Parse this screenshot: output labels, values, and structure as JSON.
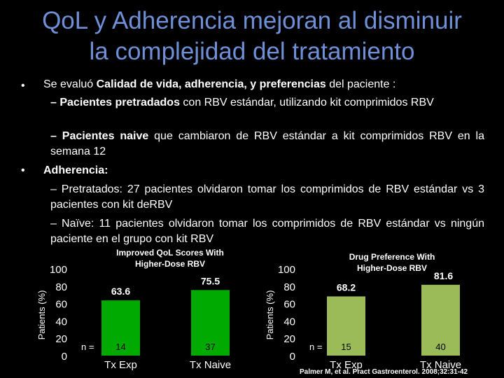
{
  "title_line1": "QoL y Adherencia mejoran al disminuir",
  "title_line2": "la complejidad del tratamiento",
  "bullets": {
    "b1_pre": "Se evaluó ",
    "b1_bold": "Calidad de vida, adherencia, y preferencias",
    "b1_post": " del paciente :",
    "s1_bold": "– Pacientes  pretradados",
    "s1_post": " con RBV estándar, utilizando kit comprimidos RBV",
    "s2_bold": "– Pacientes naive",
    "s2_post": " que cambiaron de RBV estándar a kit comprimidos RBV en la semana 12",
    "b2_bold": "Adherencia:",
    "s3": "– Pretratados: 27  pacientes olvidaron tomar los comprimidos de RBV estándar vs 3 pacientes con kit deRBV",
    "s4": "– Naïve: 11  pacientes olvidaron tomar los comprimidos de RBV estándar vs ningún paciente en el grupo con kit RBV"
  },
  "chart_data": [
    {
      "type": "bar",
      "title": "Improved QoL Scores With Higher-Dose RBV",
      "ylabel": "Patients (%)",
      "ylim": [
        0,
        100
      ],
      "yticks": [
        "100",
        "80",
        "60",
        "40",
        "20",
        "0"
      ],
      "categories": [
        "Tx Exp",
        "Tx Naive"
      ],
      "values": [
        63.6,
        75.5
      ],
      "value_labels": [
        "63.6",
        "75.5"
      ],
      "n_prefix": "n =",
      "n_values": [
        "14",
        "37"
      ],
      "bar_color": "#00aa00"
    },
    {
      "type": "bar",
      "title": "Drug Preference With Higher-Dose RBV",
      "ylabel": "Patients (%)",
      "ylim": [
        0,
        100
      ],
      "yticks": [
        "100",
        "80",
        "60",
        "40",
        "20",
        "0"
      ],
      "categories": [
        "Tx Exp",
        "Tx Naive"
      ],
      "values": [
        68.2,
        81.6
      ],
      "value_labels": [
        "68.2",
        "81.6"
      ],
      "n_prefix": "n =",
      "n_values": [
        "15",
        "40"
      ],
      "bar_color": "#9bbb59"
    }
  ],
  "citation": "Palmer M, et al. Pract Gastroenterol. 2008;32:31-42"
}
